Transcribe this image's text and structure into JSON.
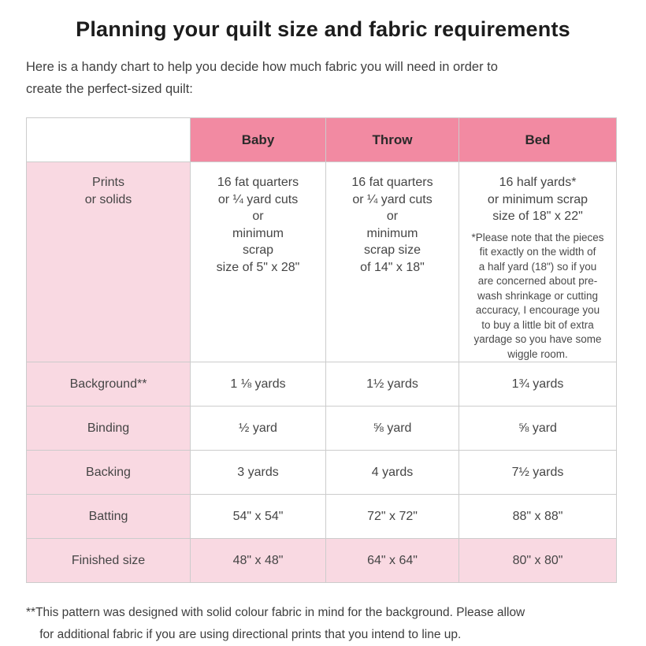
{
  "page": {
    "title": "Planning your quilt size and fabric requirements",
    "intro": "Here is a handy chart to help you decide how much fabric you will need in order to\ncreate the perfect-sized quilt:",
    "footnote": "**This pattern was designed with solid colour fabric in mind for the background. Please allow\n    for additional fabric if you are using directional prints that you intend to line up."
  },
  "colors": {
    "header_pink": "#f28aa2",
    "light_pink": "#f9d9e2",
    "border_gray": "#cccccc"
  },
  "table": {
    "headers": [
      "Baby",
      "Throw",
      "Bed"
    ],
    "prints": {
      "label": "Prints\nor solids",
      "baby": "16 fat quarters\nor ¼ yard cuts\nor\nminimum\nscrap\nsize of 5\" x 28\"",
      "throw": "16 fat quarters\nor ¼ yard cuts\nor\nminimum\nscrap size\nof 14\" x 18\"",
      "bed_main": "16 half yards*\nor minimum scrap\nsize of 18\" x 22\"",
      "bed_note": "*Please note that the pieces\nfit exactly on the width of\na half yard (18\") so if you\nare concerned about pre-\nwash shrinkage or cutting\naccuracy, I encourage you\nto buy a little bit of extra\nyardage so you have some\nwiggle room."
    },
    "rows": [
      {
        "label": "Background**",
        "values": [
          "1 ⅛ yards",
          "1½ yards",
          "1¾ yards"
        ]
      },
      {
        "label": "Binding",
        "values": [
          "½ yard",
          "⅝ yard",
          "⅝ yard"
        ]
      },
      {
        "label": "Backing",
        "values": [
          "3 yards",
          "4 yards",
          "7½ yards"
        ]
      },
      {
        "label": "Batting",
        "values": [
          "54\" x 54\"",
          "72\" x 72\"",
          "88\" x 88\""
        ]
      },
      {
        "label": "Finished size",
        "values": [
          "48\" x 48\"",
          "64\" x 64\"",
          "80\" x 80\""
        ]
      }
    ]
  }
}
